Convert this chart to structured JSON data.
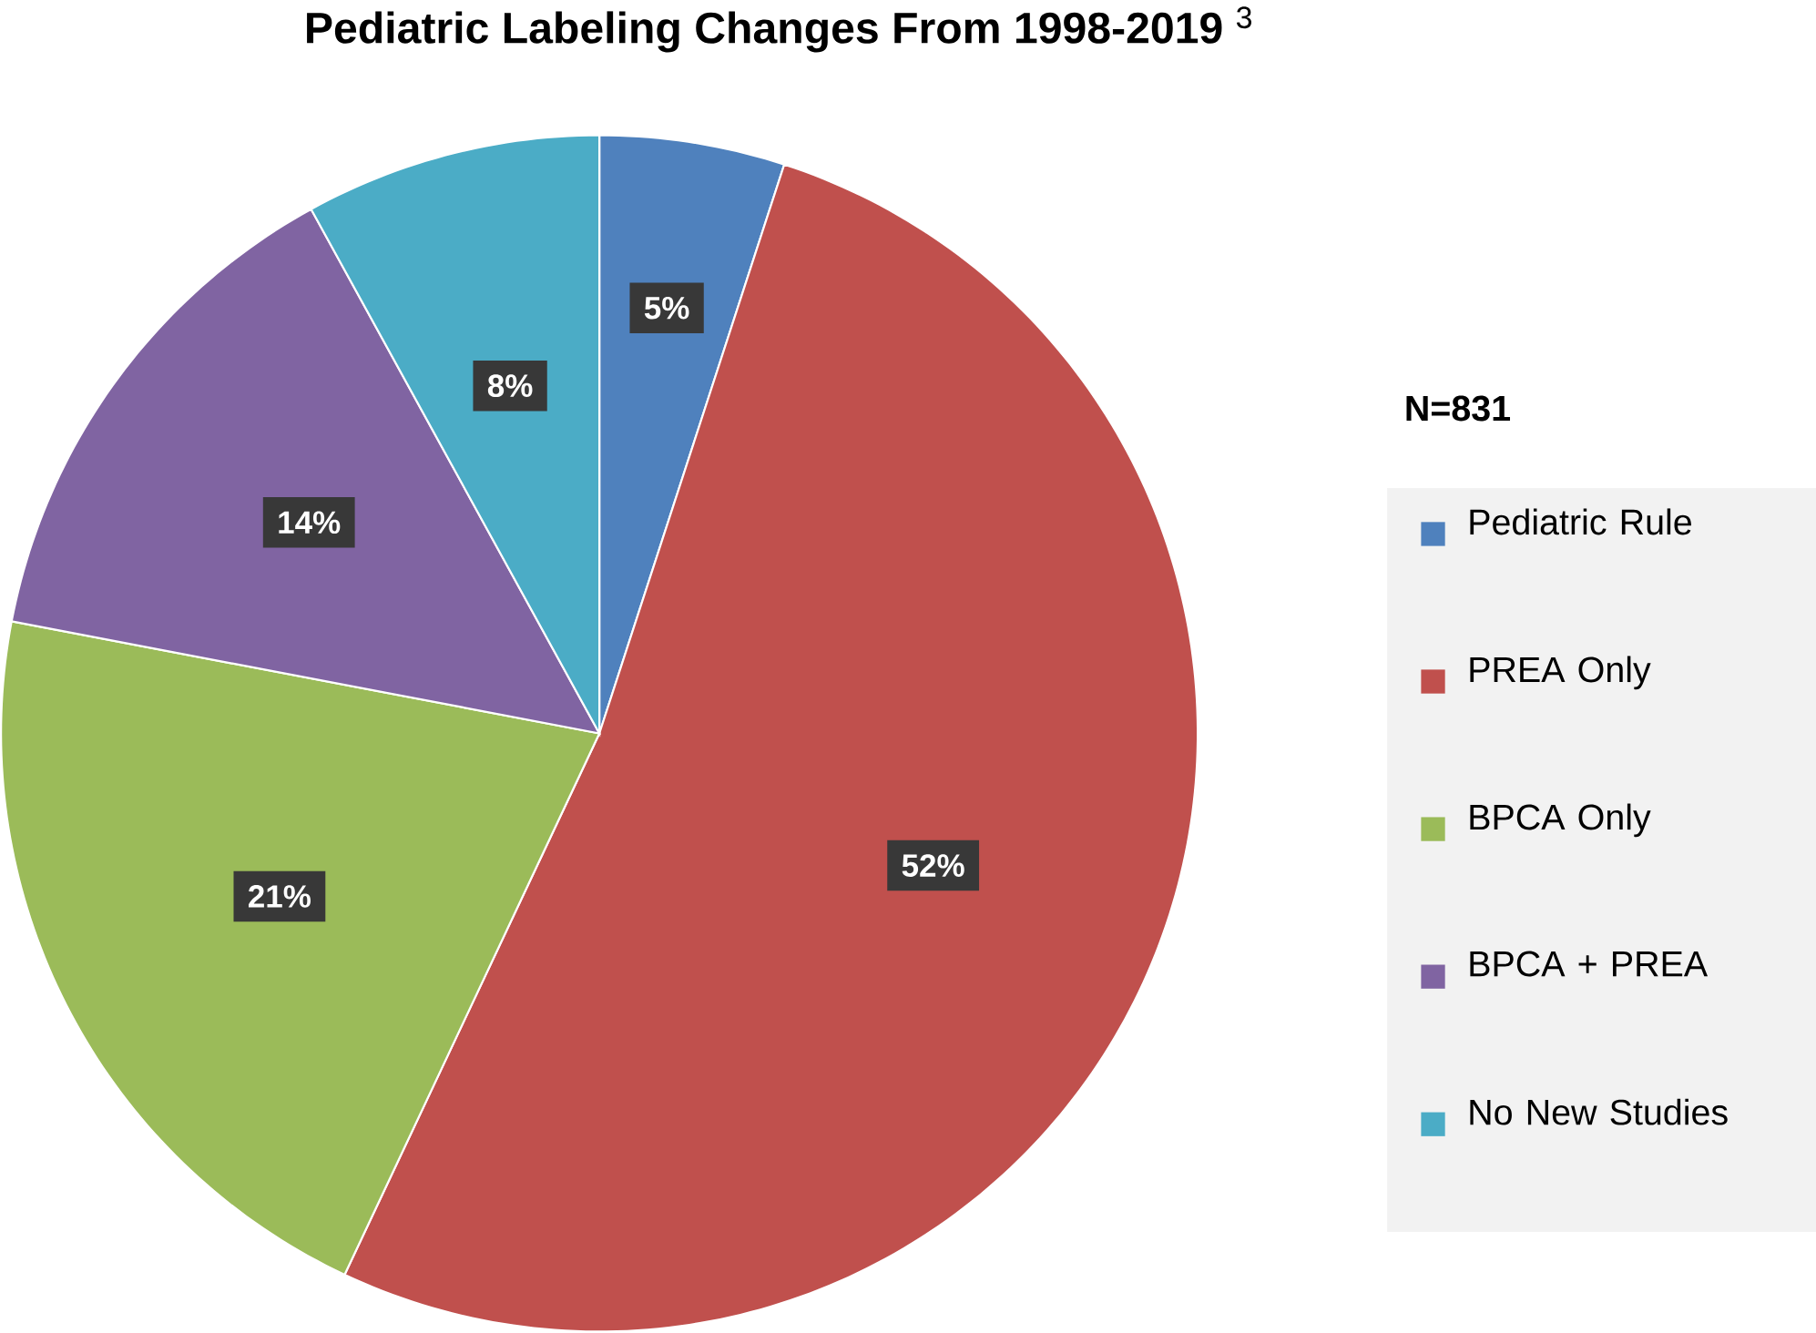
{
  "chart_data": {
    "type": "pie",
    "title": "**Pediatric Labeling Changes From 1998-2019** $^{3}$",
    "legend_title": "N=831",
    "categories": [
      "Pediatric Rule",
      "PREA Only",
      "BPCA Only",
      "BPCA + PREA",
      "No New Studies"
    ],
    "values": [
      5,
      52,
      21,
      14,
      8
    ],
    "colors": [
      "#4f81bd",
      "#c0504d",
      "#9bbb59",
      "#8064a2",
      "#4bacc6"
    ],
    "value_labels": [
      "5%",
      "52%",
      "21%",
      "14%",
      "8%"
    ],
    "legend": "right"
  }
}
